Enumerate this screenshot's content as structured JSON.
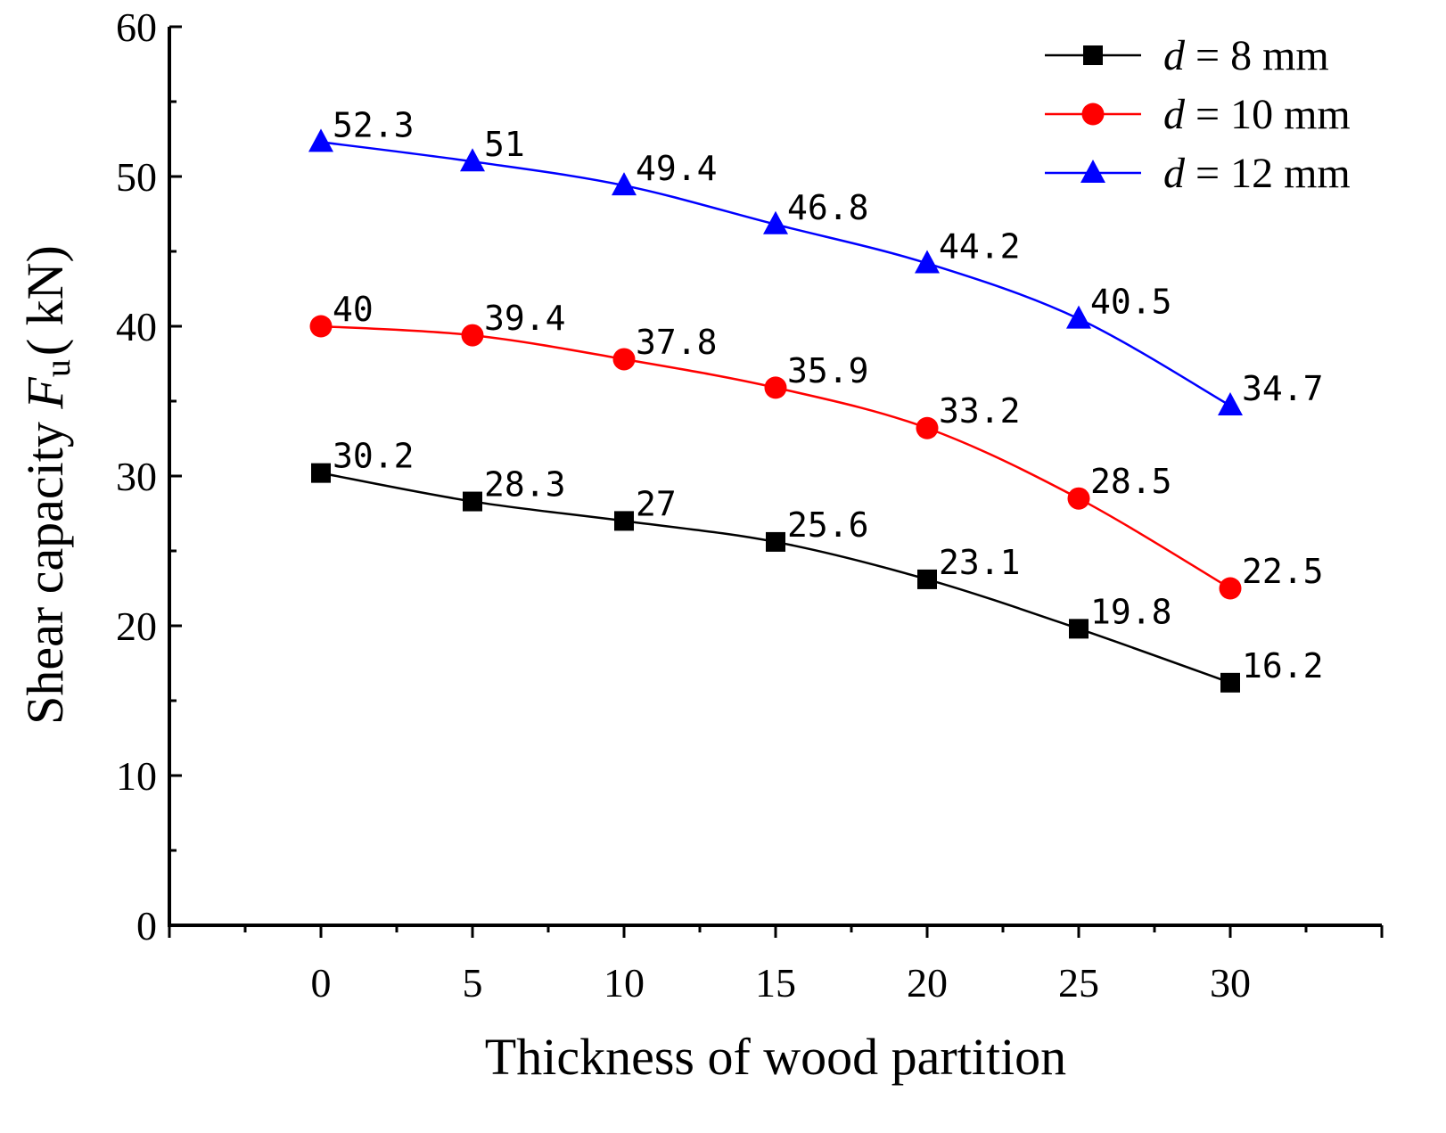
{
  "chart_data": {
    "type": "line",
    "x": [
      0,
      5,
      10,
      15,
      20,
      25,
      30
    ],
    "xlim": [
      -5,
      35
    ],
    "ylim": [
      0,
      60
    ],
    "xticks": [
      0,
      5,
      10,
      15,
      20,
      25,
      30
    ],
    "yticks": [
      0,
      10,
      20,
      30,
      40,
      50,
      60
    ],
    "xlabel": "Thickness of wood partition",
    "ylabel": {
      "prefix": "Shear capacity ",
      "symbol": "F",
      "subscript": "u",
      "unit": "( kN)"
    },
    "legend_position": "top-right",
    "series": [
      {
        "name": "d = 8 mm",
        "legend_symbol": "d",
        "legend_rest": " = 8 mm",
        "marker": "square",
        "color": "#000000",
        "values": [
          30.2,
          28.3,
          27,
          25.6,
          23.1,
          19.8,
          16.2
        ],
        "labels": [
          "30.2",
          "28.3",
          "27",
          "25.6",
          "23.1",
          "19.8",
          "16.2"
        ]
      },
      {
        "name": "d = 10 mm",
        "legend_symbol": "d",
        "legend_rest": " = 10 mm",
        "marker": "circle",
        "color": "#ff0000",
        "values": [
          40,
          39.4,
          37.8,
          35.9,
          33.2,
          28.5,
          22.5
        ],
        "labels": [
          "40",
          "39.4",
          "37.8",
          "35.9",
          "33.2",
          "28.5",
          "22.5"
        ]
      },
      {
        "name": "d = 12 mm",
        "legend_symbol": "d",
        "legend_rest": " = 12 mm",
        "marker": "triangle",
        "color": "#0000ff",
        "values": [
          52.3,
          51,
          49.4,
          46.8,
          44.2,
          40.5,
          34.7
        ],
        "labels": [
          "52.3",
          "51",
          "49.4",
          "46.8",
          "44.2",
          "40.5",
          "34.7"
        ]
      }
    ]
  }
}
